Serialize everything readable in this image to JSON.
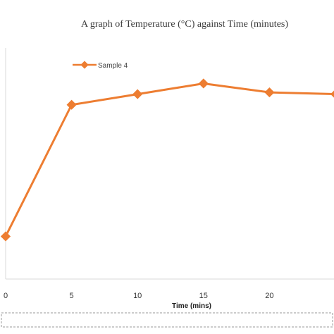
{
  "chart_data": {
    "type": "line",
    "title": "A graph of Temperature (°C)  against Time (minutes)",
    "xlabel": "Time (mins)",
    "ylabel": "",
    "x": [
      0,
      5,
      10,
      15,
      20,
      25
    ],
    "x_ticks": [
      "0",
      "5",
      "10",
      "15",
      "20"
    ],
    "xlim": [
      0,
      25
    ],
    "ylim": [
      20,
      85
    ],
    "grid": false,
    "legend_position": "top-left",
    "series": [
      {
        "name": "Sample 4",
        "color": "#ED7D31",
        "marker": "diamond",
        "values": [
          32,
          69,
          72,
          75,
          72.5,
          72
        ]
      }
    ]
  }
}
